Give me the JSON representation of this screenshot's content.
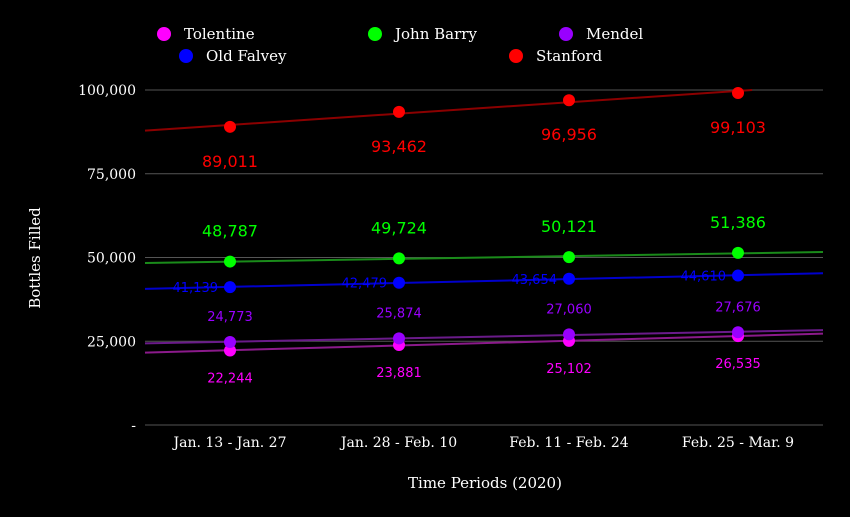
{
  "chart_data": {
    "type": "scatter",
    "xlabel": "Time Periods (2020)",
    "ylabel": "Bottles Filled",
    "categories": [
      "Jan. 13 - Jan. 27",
      "Jan. 28 - Feb. 10",
      "Feb. 11 - Feb. 24",
      "Feb. 25 - Mar. 9"
    ],
    "yticks": [
      "-",
      "25,000",
      "50,000",
      "75,000",
      "100,000"
    ],
    "ylim": [
      0,
      100000
    ],
    "grid": true,
    "trendlines": true,
    "legend_position": "top",
    "series": [
      {
        "name": "Tolentine",
        "color": "#ff00ff",
        "trend_color": "#8b1a8b",
        "values": [
          22244,
          23881,
          25102,
          26535
        ],
        "labels": [
          "22,244",
          "23,881",
          "25,102",
          "26,535"
        ]
      },
      {
        "name": "Old Falvey",
        "color": "#0000ff",
        "trend_color": "#0000cc",
        "values": [
          41139,
          42479,
          43654,
          44610
        ],
        "labels": [
          "41,139",
          "42,479",
          "43,654",
          "44,610"
        ]
      },
      {
        "name": "John Barry",
        "color": "#00ff00",
        "trend_color": "#1a8b1a",
        "values": [
          48787,
          49724,
          50121,
          51386
        ],
        "labels": [
          "48,787",
          "49,724",
          "50,121",
          "51,386"
        ]
      },
      {
        "name": "Stanford",
        "color": "#ff0000",
        "trend_color": "#8b0000",
        "values": [
          89011,
          93462,
          96956,
          99103
        ],
        "labels": [
          "89,011",
          "93,462",
          "96,956",
          "99,103"
        ]
      },
      {
        "name": "Mendel",
        "color": "#9900ff",
        "trend_color": "#6a1b8a",
        "values": [
          24773,
          25874,
          27060,
          27676
        ],
        "labels": [
          "24,773",
          "25,874",
          "27,060",
          "27,676"
        ]
      }
    ]
  }
}
